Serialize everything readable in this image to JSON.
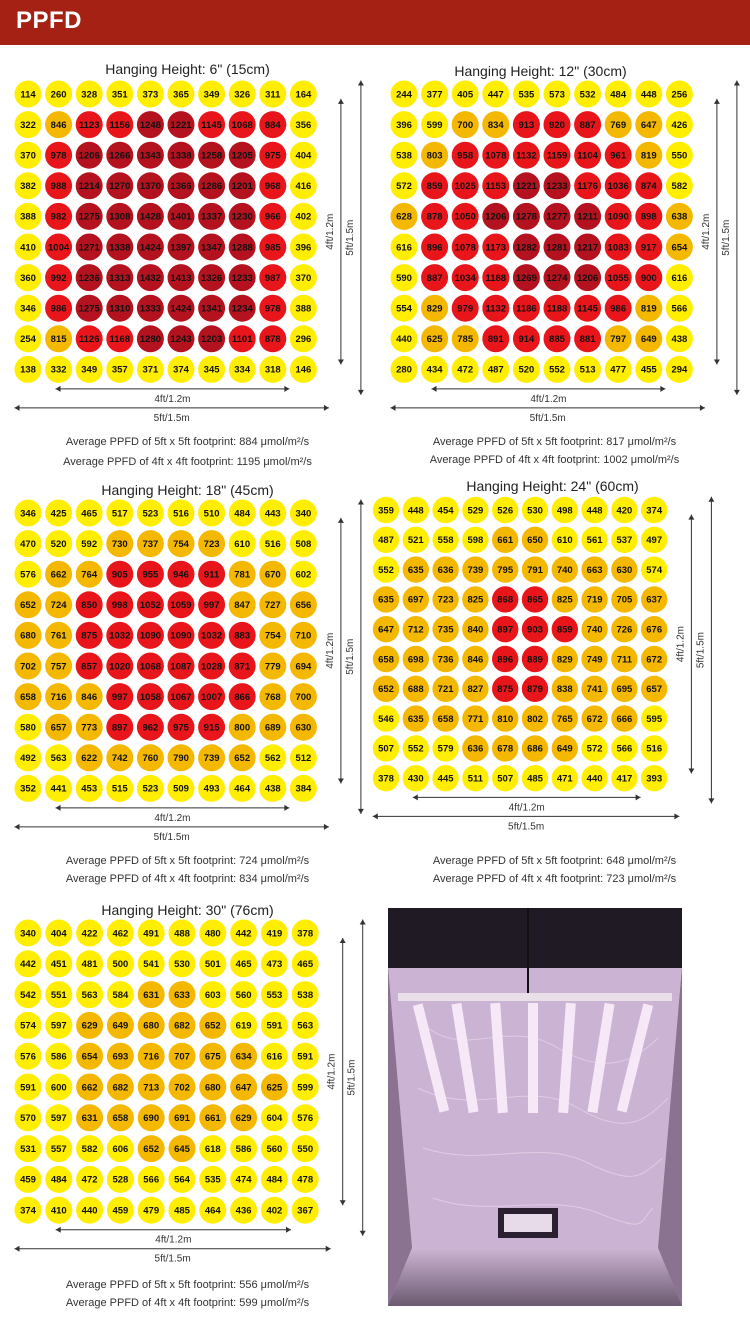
{
  "header": {
    "title": "PPFD"
  },
  "dimensions": {
    "inner": "4ft/1.2m",
    "outer": "5ft/1.5m"
  },
  "colors": {
    "banner": "#a52113",
    "yellow": "#ffee00",
    "orange": "#f5b800",
    "red": "#e8151b",
    "darkred": "#b3121e"
  },
  "photo": {
    "description_icon": "grow-tent-photo"
  },
  "chart_data": [
    {
      "type": "heatmap",
      "title": "Hanging Height: 6\" (15cm)",
      "avg_5ft": "Average PPFD of 5ft x 5ft footprint: 884 μmol/m²/s",
      "avg_4ft": "Average PPFD of 4ft x 4ft footprint: 1195 μmol/m²/s",
      "values": [
        [
          114,
          260,
          328,
          351,
          373,
          365,
          349,
          326,
          311,
          164
        ],
        [
          322,
          846,
          1123,
          1156,
          1248,
          1221,
          1145,
          1068,
          884,
          356
        ],
        [
          370,
          978,
          1206,
          1266,
          1343,
          1338,
          1258,
          1205,
          975,
          404
        ],
        [
          382,
          988,
          1214,
          1270,
          1370,
          1366,
          1286,
          1201,
          968,
          416
        ],
        [
          388,
          982,
          1275,
          1308,
          1428,
          1401,
          1337,
          1230,
          966,
          402
        ],
        [
          410,
          1004,
          1271,
          1338,
          1424,
          1397,
          1347,
          1288,
          985,
          396
        ],
        [
          360,
          992,
          1236,
          1313,
          1432,
          1413,
          1326,
          1233,
          987,
          370
        ],
        [
          346,
          986,
          1275,
          1310,
          1333,
          1424,
          1341,
          1234,
          978,
          388
        ],
        [
          254,
          815,
          1126,
          1168,
          1280,
          1243,
          1203,
          1101,
          878,
          296
        ],
        [
          138,
          332,
          349,
          357,
          371,
          374,
          345,
          334,
          318,
          146
        ]
      ]
    },
    {
      "type": "heatmap",
      "title": "Hanging Height: 12\" (30cm)",
      "avg_5ft": "Average PPFD of 5ft x 5ft footprint: 817 μmol/m²/s",
      "avg_4ft": "Average PPFD of 4ft x 4ft footprint: 1002 μmol/m²/s",
      "values": [
        [
          244,
          377,
          405,
          447,
          535,
          573,
          532,
          484,
          448,
          256
        ],
        [
          396,
          599,
          700,
          834,
          913,
          920,
          887,
          769,
          647,
          426
        ],
        [
          538,
          803,
          958,
          1078,
          1132,
          1159,
          1104,
          961,
          819,
          550
        ],
        [
          572,
          859,
          1025,
          1153,
          1221,
          1233,
          1176,
          1036,
          874,
          582
        ],
        [
          628,
          878,
          1050,
          1206,
          1278,
          1277,
          1211,
          1090,
          898,
          638
        ],
        [
          616,
          896,
          1078,
          1173,
          1282,
          1281,
          1217,
          1083,
          917,
          654
        ],
        [
          590,
          887,
          1034,
          1188,
          1269,
          1274,
          1206,
          1055,
          900,
          616
        ],
        [
          554,
          829,
          979,
          1132,
          1186,
          1188,
          1145,
          986,
          819,
          566
        ],
        [
          440,
          625,
          785,
          891,
          914,
          885,
          881,
          797,
          649,
          438
        ],
        [
          280,
          434,
          472,
          487,
          520,
          552,
          513,
          477,
          455,
          294
        ]
      ]
    },
    {
      "type": "heatmap",
      "title": "Hanging Height: 18\" (45cm)",
      "avg_5ft": "Average PPFD of 5ft x 5ft footprint: 724 μmol/m²/s",
      "avg_4ft": "Average PPFD of 4ft x 4ft footprint: 834 μmol/m²/s",
      "values": [
        [
          346,
          425,
          465,
          517,
          523,
          516,
          510,
          484,
          443,
          340
        ],
        [
          470,
          520,
          592,
          730,
          737,
          754,
          723,
          610,
          516,
          508
        ],
        [
          576,
          662,
          764,
          905,
          955,
          946,
          911,
          781,
          670,
          602
        ],
        [
          652,
          724,
          850,
          998,
          1052,
          1059,
          997,
          847,
          727,
          656
        ],
        [
          680,
          761,
          875,
          1032,
          1090,
          1090,
          1032,
          883,
          754,
          710
        ],
        [
          702,
          757,
          857,
          1020,
          1068,
          1087,
          1028,
          871,
          779,
          694
        ],
        [
          658,
          716,
          846,
          997,
          1058,
          1067,
          1007,
          866,
          768,
          700
        ],
        [
          580,
          657,
          773,
          897,
          962,
          975,
          915,
          800,
          689,
          630
        ],
        [
          492,
          563,
          622,
          742,
          760,
          790,
          739,
          652,
          562,
          512
        ],
        [
          352,
          441,
          453,
          515,
          523,
          509,
          493,
          464,
          438,
          384
        ]
      ]
    },
    {
      "type": "heatmap",
      "title": "Hanging Height: 24\" (60cm)",
      "avg_5ft": "Average PPFD of 5ft x 5ft footprint: 648 μmol/m²/s",
      "avg_4ft": "Average PPFD of 4ft x 4ft footprint: 723 μmol/m²/s",
      "values": [
        [
          359,
          448,
          454,
          529,
          526,
          530,
          498,
          448,
          420,
          374
        ],
        [
          487,
          521,
          558,
          598,
          661,
          650,
          610,
          561,
          537,
          497
        ],
        [
          552,
          635,
          636,
          739,
          795,
          791,
          740,
          663,
          630,
          574
        ],
        [
          635,
          697,
          723,
          825,
          868,
          865,
          825,
          719,
          705,
          637
        ],
        [
          647,
          712,
          735,
          840,
          897,
          903,
          859,
          740,
          726,
          676
        ],
        [
          658,
          698,
          736,
          846,
          896,
          889,
          829,
          749,
          711,
          672
        ],
        [
          652,
          688,
          721,
          827,
          875,
          879,
          838,
          741,
          695,
          657
        ],
        [
          546,
          635,
          658,
          771,
          810,
          802,
          765,
          672,
          666,
          595
        ],
        [
          507,
          552,
          579,
          636,
          678,
          686,
          649,
          572,
          566,
          516
        ],
        [
          378,
          430,
          445,
          511,
          507,
          485,
          471,
          440,
          417,
          393
        ]
      ]
    },
    {
      "type": "heatmap",
      "title": "Hanging Height: 30\" (76cm)",
      "avg_5ft": "Average PPFD of 5ft x 5ft footprint: 556 μmol/m²/s",
      "avg_4ft": "Average PPFD of 4ft x 4ft footprint: 599 μmol/m²/s",
      "values": [
        [
          340,
          404,
          422,
          462,
          491,
          488,
          480,
          442,
          419,
          378
        ],
        [
          442,
          451,
          481,
          500,
          541,
          530,
          501,
          465,
          473,
          465
        ],
        [
          542,
          551,
          563,
          584,
          631,
          633,
          603,
          560,
          553,
          538
        ],
        [
          574,
          597,
          629,
          649,
          680,
          682,
          652,
          619,
          591,
          563
        ],
        [
          576,
          586,
          654,
          693,
          716,
          707,
          675,
          634,
          616,
          591
        ],
        [
          591,
          600,
          662,
          682,
          713,
          702,
          680,
          647,
          625,
          599
        ],
        [
          570,
          597,
          631,
          658,
          690,
          691,
          661,
          629,
          604,
          576
        ],
        [
          531,
          557,
          582,
          606,
          652,
          645,
          618,
          586,
          560,
          550
        ],
        [
          459,
          484,
          472,
          528,
          566,
          564,
          535,
          474,
          484,
          478
        ],
        [
          374,
          410,
          440,
          459,
          479,
          485,
          464,
          436,
          402,
          367
        ]
      ]
    }
  ]
}
